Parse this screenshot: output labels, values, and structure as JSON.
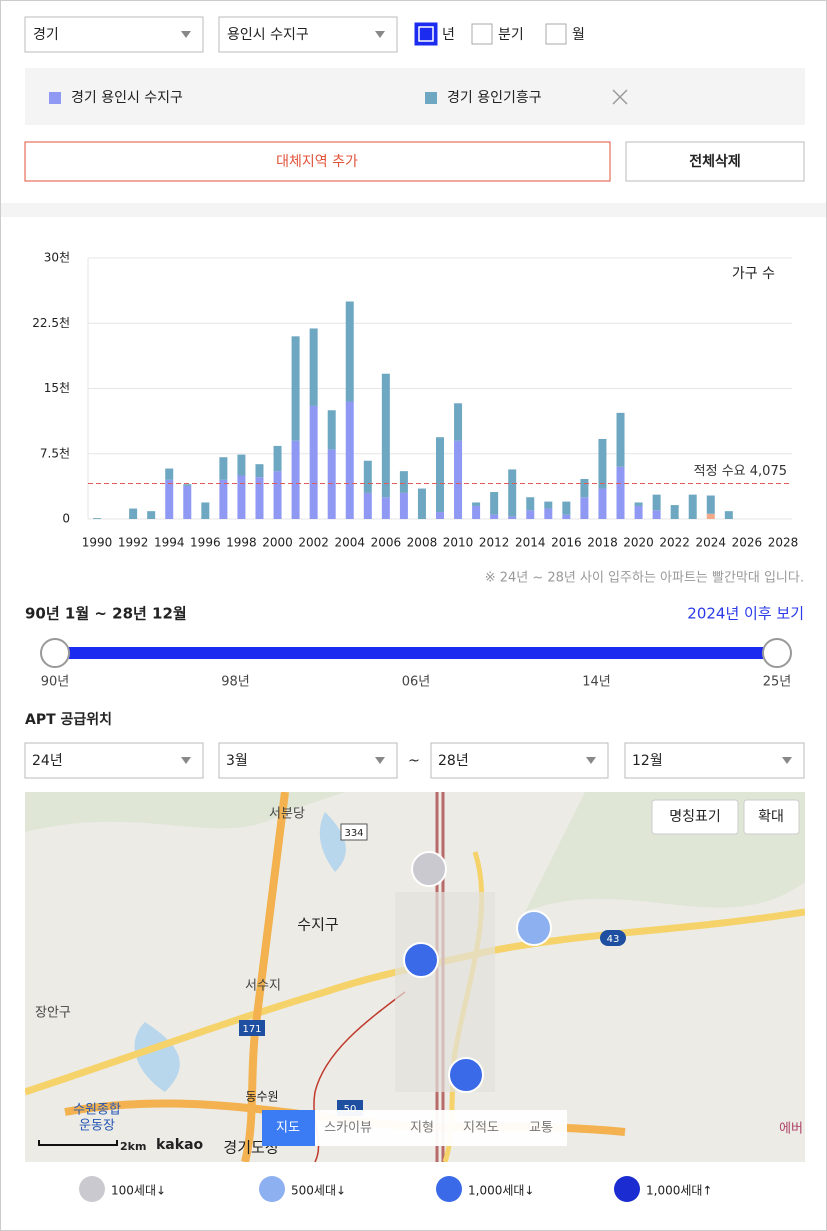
{
  "filters": {
    "region": "경기",
    "district": "용인시 수지구",
    "periods": [
      {
        "label": "년",
        "checked": true
      },
      {
        "label": "분기",
        "checked": false
      },
      {
        "label": "월",
        "checked": false
      }
    ]
  },
  "buttons": {
    "add": "대체지역 추가",
    "clear": "전체삭제"
  },
  "chart_data": {
    "type": "bar",
    "stacked": true,
    "y_label": "가구 수",
    "categories": [
      "1990",
      null,
      "1992",
      null,
      "1994",
      null,
      "1996",
      null,
      "1998",
      null,
      "2000",
      null,
      "2002",
      null,
      "2004",
      null,
      "2006",
      null,
      "2008",
      null,
      "2010",
      null,
      "2012",
      null,
      "2014",
      null,
      "2016",
      null,
      "2018",
      null,
      "2020",
      null,
      "2022",
      null,
      "2024",
      null,
      "2026",
      null,
      "2028"
    ],
    "series": [
      {
        "color": "#f2a98a",
        "values": [
          0,
          0,
          0,
          0,
          0,
          0,
          0,
          0,
          0,
          0,
          0,
          0,
          0,
          0,
          0,
          0,
          0,
          0,
          0,
          0,
          0,
          0,
          0,
          0,
          0,
          0,
          0,
          0,
          0,
          0,
          0,
          0,
          0,
          0,
          600,
          0,
          0,
          0,
          0
        ]
      },
      {
        "name": "경기 용인시 수지구",
        "color": "#8f98f3",
        "values": [
          0,
          0,
          0,
          0,
          4500,
          3800,
          0,
          4500,
          5000,
          4800,
          5500,
          9000,
          13000,
          8000,
          13500,
          3000,
          2500,
          3000,
          0,
          800,
          9000,
          1500,
          500,
          300,
          1000,
          1200,
          500,
          2500,
          3500,
          6000,
          1500,
          1000,
          0,
          0,
          0,
          0,
          0,
          0,
          0
        ]
      },
      {
        "name": "경기 용인기흥구",
        "color": "#6ea7c2",
        "values": [
          100,
          0,
          1200,
          900,
          1300,
          200,
          1900,
          2600,
          2400,
          1500,
          2900,
          12000,
          8900,
          4500,
          11500,
          3700,
          14200,
          2500,
          3500,
          8600,
          4300,
          400,
          2600,
          5400,
          1500,
          800,
          1500,
          2100,
          5700,
          6200,
          400,
          1800,
          1600,
          2800,
          2100,
          900,
          0,
          0,
          0
        ]
      }
    ],
    "ylim": [
      0,
      30000
    ],
    "yticks": [
      0,
      {
        "value": 7500,
        "label": "7.5천"
      },
      {
        "value": 15000,
        "label": "15천"
      },
      {
        "value": 22500,
        "label": "22.5천"
      },
      {
        "value": 30000,
        "label": "30천"
      }
    ],
    "grid": true,
    "reference": {
      "value": 4075,
      "label": "적정 수요 4,075",
      "color": "#e05a5a"
    }
  },
  "note": "※ 24년 ~ 28년 사이 입주하는 아파트는 빨간막대 입니다.",
  "range": {
    "title": "90년 1월 ~ 28년 12월",
    "link": "2024년 이후 보기",
    "ticks": [
      "90년",
      "98년",
      "06년",
      "14년",
      "25년"
    ]
  },
  "location": {
    "title": "APT 공급위치",
    "from_year": "24년",
    "from_month": "3월",
    "separator": "~",
    "to_year": "28년",
    "to_month": "12월"
  },
  "map": {
    "buttons": [
      "명칭표기",
      "확대"
    ],
    "tabs": [
      "지도",
      "스카이뷰",
      "지형",
      "지적도",
      "교통"
    ],
    "labels": [
      "서분당",
      "수지구",
      "서수지",
      "장안구",
      "수원종합",
      "운동장",
      "동수원",
      "경기도청",
      "334",
      "43",
      "171",
      "50",
      "에버"
    ],
    "scale": "2km",
    "brand": "kakao"
  },
  "map_legend": [
    "100세대↓",
    "500세대↓",
    "1,000세대↓",
    "1,000세대↑"
  ]
}
